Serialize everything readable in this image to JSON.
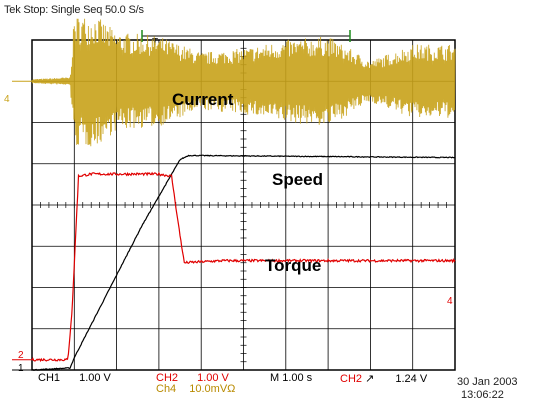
{
  "status": {
    "state": "Tek Stop: Single Seq",
    "sample_rate": "50.0 S/s"
  },
  "trace_labels": {
    "current": "Current",
    "speed": "Speed",
    "torque": "Torque"
  },
  "channel_markers": {
    "ch4": "4",
    "ch2": "2",
    "ch1": "1",
    "ch4_right": "4"
  },
  "readout": {
    "ch1_label": "CH1",
    "ch1_scale": "1.00 V",
    "ch2_label": "CH2",
    "ch2_scale": "1.00 V",
    "ch4_label": "Ch4",
    "ch4_scale": "10.0mVΩ",
    "timebase": "M 1.00 s",
    "trigger_source": "CH2",
    "trigger_slope": "↗",
    "trigger_level": "1.24 V"
  },
  "timestamp": {
    "date": "30 Jan 2003",
    "time": "13:06:22"
  },
  "colors": {
    "ch1_speed": "#000000",
    "ch2_torque": "#e00000",
    "ch4_current": "#c8a21a",
    "trigger_marker": "#1a8a1a"
  },
  "chart_data": {
    "type": "line",
    "title": "",
    "xlabel": "",
    "ylabel": "",
    "x_divisions": 10,
    "y_divisions": 8,
    "grid": true,
    "series": [
      {
        "name": "Current",
        "channel": "CH4",
        "x": [
          0.0,
          0.9,
          1.0,
          1.5,
          2.0,
          3.0,
          4.0,
          5.0,
          6.0,
          7.0,
          8.0,
          9.0,
          10.0
        ],
        "envelope_div": [
          0.05,
          0.1,
          1.6,
          1.6,
          1.2,
          1.1,
          0.7,
          0.8,
          1.0,
          1.1,
          0.5,
          0.9,
          0.9
        ],
        "center_div": 7.0
      },
      {
        "name": "Speed",
        "channel": "CH1",
        "x": [
          0.0,
          0.9,
          1.0,
          1.8,
          2.6,
          3.5,
          3.7,
          10.0
        ],
        "y": [
          0.0,
          0.05,
          0.3,
          1.9,
          3.5,
          5.1,
          5.2,
          5.15
        ]
      },
      {
        "name": "Torque",
        "channel": "CH2",
        "x": [
          0.0,
          0.85,
          0.95,
          1.1,
          1.4,
          2.0,
          3.0,
          3.3,
          3.45,
          3.6,
          4.5,
          10.0
        ],
        "y": [
          0.25,
          0.25,
          1.5,
          4.7,
          4.75,
          4.75,
          4.75,
          4.7,
          3.6,
          2.6,
          2.65,
          2.65
        ]
      }
    ]
  }
}
